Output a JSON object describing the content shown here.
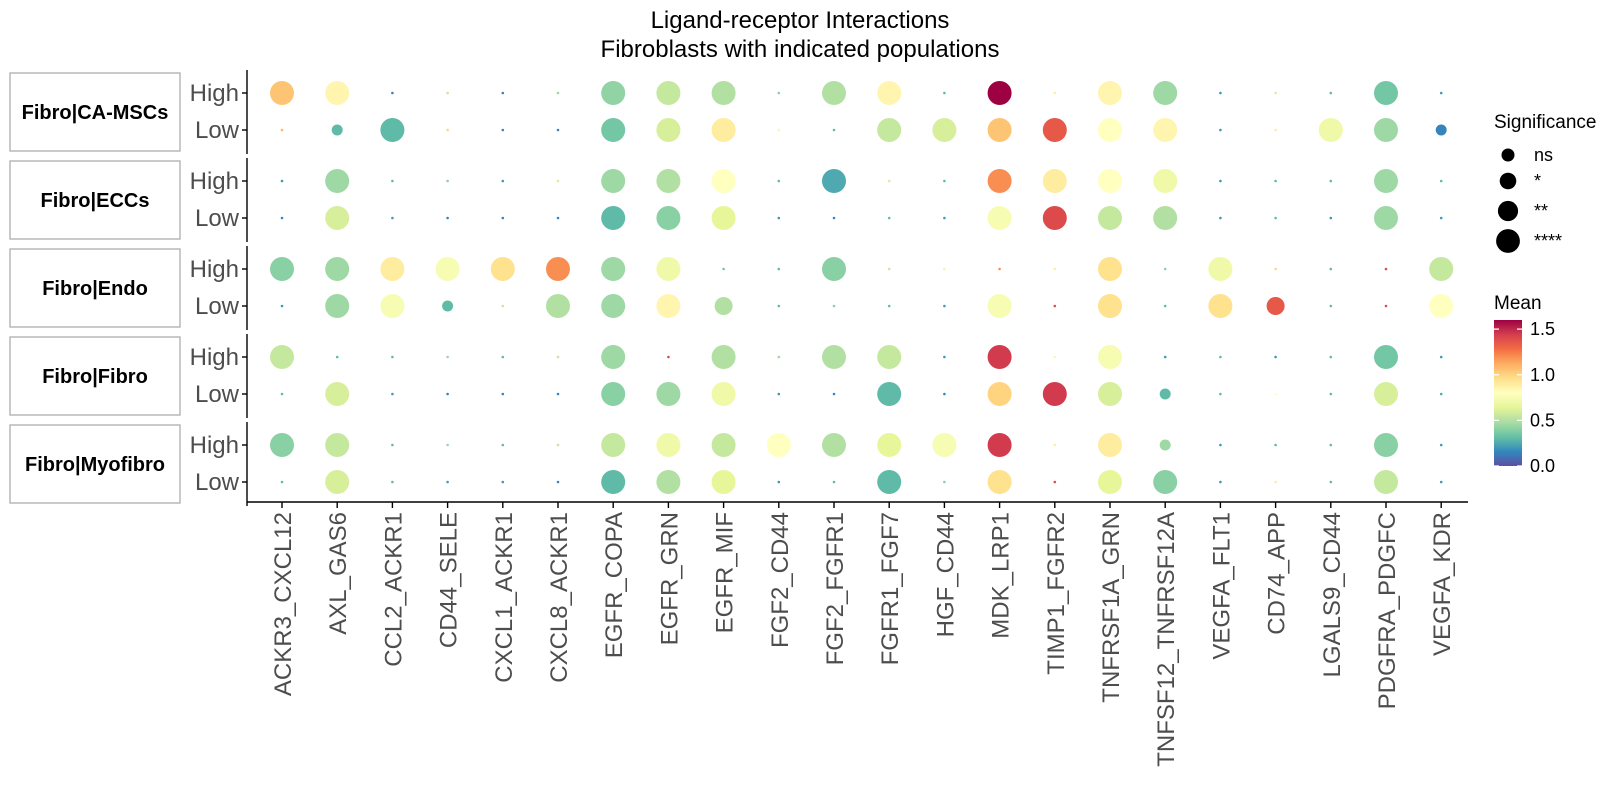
{
  "chart_data": {
    "type": "dot",
    "title": "Ligand-receptor Interactions",
    "subtitle": "Fibroblasts with indicated populations",
    "panels": [
      "Fibro|CA-MSCs",
      "Fibro|ECCs",
      "Fibro|Endo",
      "Fibro|Fibro",
      "Fibro|Myofibro"
    ],
    "rows": [
      "High",
      "Low"
    ],
    "columns": [
      "ACKR3_CXCL12",
      "AXL_GAS6",
      "CCL2_ACKR1",
      "CD44_SELE",
      "CXCL1_ACKR1",
      "CXCL8_ACKR1",
      "EGFR_COPA",
      "EGFR_GRN",
      "EGFR_MIF",
      "FGF2_CD44",
      "FGF2_FGFR1",
      "FGFR1_FGF7",
      "HGF_CD44",
      "MDK_LRP1",
      "TIMP1_FGFR2",
      "TNFRSF1A_GRN",
      "TNFSF12_TNFRSF12A",
      "VEGFA_FLT1",
      "CD74_APP",
      "LGALS9_CD44",
      "PDGFRA_PDGFC",
      "VEGFA_KDR"
    ],
    "size_legend": {
      "title": "Significance",
      "levels": [
        "ns",
        "*",
        "**",
        "****"
      ]
    },
    "color_legend": {
      "title": "Mean",
      "ticks": [
        "0.0",
        "0.5",
        "1.0",
        "1.5"
      ],
      "range": [
        0,
        1.6
      ],
      "palette": [
        "#5e4fa2",
        "#3288bd",
        "#66c2a5",
        "#abdda4",
        "#e6f598",
        "#ffffbf",
        "#fee08b",
        "#fdae61",
        "#f46d43",
        "#d53e4f",
        "#9e0142"
      ]
    },
    "values": {
      "Fibro|CA-MSCs": {
        "High": {
          "mean": [
            1.05,
            0.85,
            0.15,
            0.55,
            0.15,
            0.45,
            0.42,
            0.55,
            0.5,
            0.4,
            0.5,
            0.85,
            0.3,
            1.6,
            0.9,
            0.85,
            0.45,
            0.2,
            0.6,
            0.3,
            0.35,
            0.2
          ],
          "sig": [
            3,
            3,
            0,
            0,
            0,
            0,
            3,
            3,
            3,
            0,
            3,
            3,
            0,
            3,
            0,
            3,
            3,
            0,
            0,
            0,
            3,
            0
          ]
        },
        "Low": {
          "mean": [
            1.1,
            0.3,
            0.3,
            1.0,
            0.15,
            0.15,
            0.35,
            0.6,
            0.9,
            0.85,
            0.3,
            0.55,
            0.6,
            1.05,
            1.35,
            0.8,
            0.85,
            0.2,
            0.9,
            0.7,
            0.45,
            0.15
          ],
          "sig": [
            0,
            1,
            3,
            0,
            0,
            0,
            3,
            3,
            3,
            0,
            0,
            3,
            3,
            3,
            3,
            3,
            3,
            0,
            0,
            3,
            3,
            1
          ]
        }
      },
      "Fibro|ECCs": {
        "High": {
          "mean": [
            0.2,
            0.45,
            0.3,
            0.4,
            0.2,
            0.6,
            0.45,
            0.5,
            0.8,
            0.3,
            0.25,
            0.6,
            0.3,
            1.2,
            0.9,
            0.8,
            0.7,
            0.2,
            0.3,
            0.3,
            0.45,
            0.3
          ],
          "sig": [
            0,
            3,
            0,
            0,
            0,
            0,
            3,
            3,
            3,
            0,
            3,
            0,
            0,
            3,
            3,
            3,
            3,
            0,
            0,
            0,
            3,
            0
          ]
        },
        "Low": {
          "mean": [
            0.15,
            0.6,
            0.2,
            0.15,
            0.15,
            0.15,
            0.3,
            0.4,
            0.65,
            0.2,
            0.15,
            0.3,
            0.2,
            0.75,
            1.4,
            0.55,
            0.5,
            0.2,
            0.3,
            0.2,
            0.45,
            0.2
          ],
          "sig": [
            0,
            3,
            0,
            0,
            0,
            0,
            3,
            3,
            3,
            0,
            0,
            0,
            0,
            3,
            3,
            3,
            3,
            0,
            0,
            0,
            3,
            0
          ]
        }
      },
      "Fibro|Endo": {
        "High": {
          "mean": [
            0.4,
            0.45,
            0.9,
            0.75,
            0.95,
            1.2,
            0.45,
            0.7,
            0.35,
            0.3,
            0.4,
            0.55,
            0.7,
            1.2,
            0.9,
            0.95,
            0.4,
            0.7,
            1.0,
            0.3,
            1.4,
            0.55
          ],
          "sig": [
            3,
            3,
            3,
            3,
            3,
            3,
            3,
            3,
            0,
            0,
            3,
            0,
            0,
            0,
            0,
            3,
            0,
            3,
            0,
            0,
            0,
            3
          ]
        },
        "Low": {
          "mean": [
            0.2,
            0.45,
            0.75,
            0.3,
            0.55,
            0.5,
            0.45,
            0.85,
            0.5,
            0.3,
            0.4,
            0.3,
            0.2,
            0.75,
            1.4,
            0.95,
            0.3,
            0.95,
            1.35,
            0.3,
            1.4,
            0.8
          ],
          "sig": [
            0,
            3,
            3,
            1,
            0,
            3,
            3,
            3,
            2,
            0,
            0,
            0,
            0,
            3,
            0,
            3,
            0,
            3,
            2,
            0,
            0,
            3
          ]
        }
      },
      "Fibro|Fibro": {
        "High": {
          "mean": [
            0.55,
            0.3,
            0.3,
            0.45,
            0.3,
            0.55,
            0.45,
            1.4,
            0.5,
            0.45,
            0.5,
            0.55,
            0.2,
            1.45,
            0.85,
            0.75,
            0.2,
            0.3,
            0.2,
            0.3,
            0.35,
            0.2
          ],
          "sig": [
            3,
            0,
            0,
            0,
            0,
            0,
            3,
            0,
            3,
            0,
            3,
            3,
            0,
            3,
            0,
            3,
            0,
            0,
            0,
            0,
            3,
            0
          ]
        },
        "Low": {
          "mean": [
            0.3,
            0.6,
            0.2,
            0.15,
            0.15,
            0.15,
            0.4,
            0.45,
            0.7,
            0.2,
            0.15,
            0.3,
            0.15,
            1.0,
            1.45,
            0.6,
            0.3,
            0.3,
            0.8,
            0.3,
            0.6,
            0.25
          ],
          "sig": [
            0,
            3,
            0,
            0,
            0,
            0,
            3,
            3,
            3,
            0,
            0,
            3,
            0,
            3,
            3,
            3,
            1,
            0,
            0,
            0,
            3,
            0
          ]
        }
      },
      "Fibro|Myofibro": {
        "High": {
          "mean": [
            0.4,
            0.55,
            0.3,
            0.45,
            0.3,
            0.55,
            0.55,
            0.7,
            0.55,
            0.8,
            0.5,
            0.65,
            0.75,
            1.45,
            0.9,
            0.9,
            0.45,
            0.2,
            0.3,
            0.3,
            0.4,
            0.2
          ],
          "sig": [
            3,
            3,
            0,
            0,
            0,
            0,
            3,
            3,
            3,
            3,
            3,
            3,
            3,
            3,
            0,
            3,
            1,
            0,
            0,
            0,
            3,
            0
          ]
        },
        "Low": {
          "mean": [
            0.3,
            0.6,
            0.3,
            0.2,
            0.2,
            0.15,
            0.3,
            0.5,
            0.65,
            0.2,
            0.3,
            0.3,
            0.4,
            0.95,
            1.4,
            0.65,
            0.4,
            0.2,
            0.9,
            0.3,
            0.55,
            0.2
          ],
          "sig": [
            0,
            3,
            0,
            0,
            0,
            0,
            3,
            3,
            3,
            0,
            0,
            3,
            0,
            3,
            0,
            3,
            3,
            0,
            0,
            0,
            3,
            0
          ]
        }
      }
    }
  }
}
